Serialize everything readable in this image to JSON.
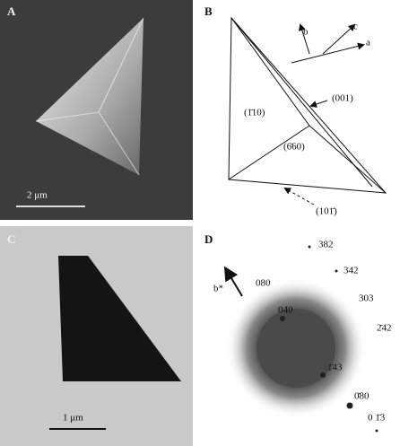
{
  "panels": {
    "a": {
      "label": "A",
      "scale_bar": "2 μm"
    },
    "b": {
      "label": "B",
      "axes": [
        "b",
        "c",
        "a"
      ],
      "faces": [
        "(001)",
        "(1̄10)",
        "(6̄60)",
        "(101̄)"
      ]
    },
    "c": {
      "label": "C",
      "scale_bar": "1 μm"
    },
    "d": {
      "label": "D",
      "direction": "b*",
      "spots": [
        "382",
        "342",
        "080",
        "303",
        "2̄42",
        "040",
        "1̄43",
        "0̄80",
        "0 1̄3"
      ]
    }
  }
}
